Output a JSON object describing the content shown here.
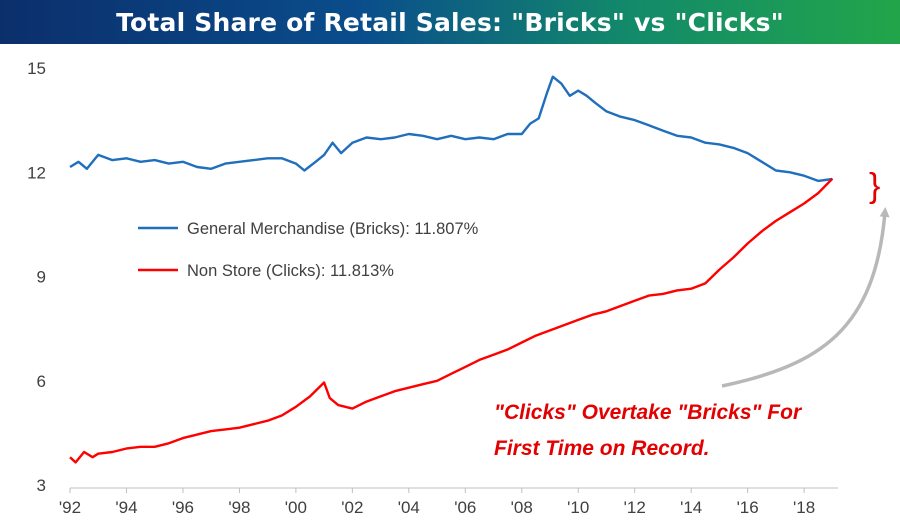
{
  "chart_data": {
    "type": "line",
    "title": "Total Share of Retail Sales: \"Bricks\" vs \"Clicks\"",
    "xlabel": "",
    "ylabel": "",
    "xlim": [
      1992,
      2019.2
    ],
    "ylim": [
      3,
      15
    ],
    "y_ticks": [
      "3",
      "6",
      "9",
      "12",
      "15"
    ],
    "x_ticks": [
      "'92",
      "'94",
      "'96",
      "'98",
      "'00",
      "'02",
      "'04",
      "'06",
      "'08",
      "'10",
      "'12",
      "'14",
      "'16",
      "'18"
    ],
    "grid": false,
    "series": [
      {
        "name": "General Merchandise (Bricks): 11.807%",
        "color": "#1f6fbd",
        "points": [
          [
            1992.0,
            12.15
          ],
          [
            1992.3,
            12.3
          ],
          [
            1992.6,
            12.1
          ],
          [
            1993.0,
            12.5
          ],
          [
            1993.5,
            12.35
          ],
          [
            1994.0,
            12.4
          ],
          [
            1994.5,
            12.3
          ],
          [
            1995.0,
            12.35
          ],
          [
            1995.5,
            12.25
          ],
          [
            1996.0,
            12.3
          ],
          [
            1996.5,
            12.15
          ],
          [
            1997.0,
            12.1
          ],
          [
            1997.5,
            12.25
          ],
          [
            1998.0,
            12.3
          ],
          [
            1998.5,
            12.35
          ],
          [
            1999.0,
            12.4
          ],
          [
            1999.5,
            12.4
          ],
          [
            2000.0,
            12.25
          ],
          [
            2000.3,
            12.05
          ],
          [
            2000.7,
            12.3
          ],
          [
            2001.0,
            12.5
          ],
          [
            2001.3,
            12.85
          ],
          [
            2001.6,
            12.55
          ],
          [
            2002.0,
            12.85
          ],
          [
            2002.5,
            13.0
          ],
          [
            2003.0,
            12.95
          ],
          [
            2003.5,
            13.0
          ],
          [
            2004.0,
            13.1
          ],
          [
            2004.5,
            13.05
          ],
          [
            2005.0,
            12.95
          ],
          [
            2005.5,
            13.05
          ],
          [
            2006.0,
            12.95
          ],
          [
            2006.5,
            13.0
          ],
          [
            2007.0,
            12.95
          ],
          [
            2007.5,
            13.1
          ],
          [
            2008.0,
            13.1
          ],
          [
            2008.3,
            13.4
          ],
          [
            2008.6,
            13.55
          ],
          [
            2008.9,
            14.3
          ],
          [
            2009.1,
            14.75
          ],
          [
            2009.4,
            14.55
          ],
          [
            2009.7,
            14.2
          ],
          [
            2010.0,
            14.35
          ],
          [
            2010.3,
            14.2
          ],
          [
            2010.6,
            14.0
          ],
          [
            2011.0,
            13.75
          ],
          [
            2011.5,
            13.6
          ],
          [
            2012.0,
            13.5
          ],
          [
            2012.5,
            13.35
          ],
          [
            2013.0,
            13.2
          ],
          [
            2013.5,
            13.05
          ],
          [
            2014.0,
            13.0
          ],
          [
            2014.5,
            12.85
          ],
          [
            2015.0,
            12.8
          ],
          [
            2015.5,
            12.7
          ],
          [
            2016.0,
            12.55
          ],
          [
            2016.5,
            12.3
          ],
          [
            2017.0,
            12.05
          ],
          [
            2017.5,
            12.0
          ],
          [
            2018.0,
            11.9
          ],
          [
            2018.5,
            11.75
          ],
          [
            2019.0,
            11.807
          ]
        ]
      },
      {
        "name": "Non Store (Clicks): 11.813%",
        "color": "#ff0000",
        "points": [
          [
            1992.0,
            3.8
          ],
          [
            1992.2,
            3.65
          ],
          [
            1992.5,
            3.95
          ],
          [
            1992.8,
            3.8
          ],
          [
            1993.0,
            3.9
          ],
          [
            1993.5,
            3.95
          ],
          [
            1994.0,
            4.05
          ],
          [
            1994.5,
            4.1
          ],
          [
            1995.0,
            4.1
          ],
          [
            1995.5,
            4.2
          ],
          [
            1996.0,
            4.35
          ],
          [
            1996.5,
            4.45
          ],
          [
            1997.0,
            4.55
          ],
          [
            1997.5,
            4.6
          ],
          [
            1998.0,
            4.65
          ],
          [
            1998.5,
            4.75
          ],
          [
            1999.0,
            4.85
          ],
          [
            1999.5,
            5.0
          ],
          [
            2000.0,
            5.25
          ],
          [
            2000.5,
            5.55
          ],
          [
            2001.0,
            5.95
          ],
          [
            2001.2,
            5.5
          ],
          [
            2001.5,
            5.3
          ],
          [
            2002.0,
            5.2
          ],
          [
            2002.5,
            5.4
          ],
          [
            2003.0,
            5.55
          ],
          [
            2003.5,
            5.7
          ],
          [
            2004.0,
            5.8
          ],
          [
            2004.5,
            5.9
          ],
          [
            2005.0,
            6.0
          ],
          [
            2005.5,
            6.2
          ],
          [
            2006.0,
            6.4
          ],
          [
            2006.5,
            6.6
          ],
          [
            2007.0,
            6.75
          ],
          [
            2007.5,
            6.9
          ],
          [
            2008.0,
            7.1
          ],
          [
            2008.5,
            7.3
          ],
          [
            2009.0,
            7.45
          ],
          [
            2009.5,
            7.6
          ],
          [
            2010.0,
            7.75
          ],
          [
            2010.5,
            7.9
          ],
          [
            2011.0,
            8.0
          ],
          [
            2011.5,
            8.15
          ],
          [
            2012.0,
            8.3
          ],
          [
            2012.5,
            8.45
          ],
          [
            2013.0,
            8.5
          ],
          [
            2013.5,
            8.6
          ],
          [
            2014.0,
            8.65
          ],
          [
            2014.5,
            8.8
          ],
          [
            2015.0,
            9.2
          ],
          [
            2015.5,
            9.55
          ],
          [
            2016.0,
            9.95
          ],
          [
            2016.5,
            10.3
          ],
          [
            2017.0,
            10.6
          ],
          [
            2017.5,
            10.85
          ],
          [
            2018.0,
            11.1
          ],
          [
            2018.5,
            11.4
          ],
          [
            2019.0,
            11.813
          ]
        ]
      }
    ],
    "legend": [
      {
        "label": "General Merchandise (Bricks): 11.807%",
        "color": "#1f6fbd"
      },
      {
        "label": "Non Store (Clicks): 11.813%",
        "color": "#ff0000"
      }
    ],
    "annotation": {
      "lines": [
        "\"Clicks\" Overtake \"Bricks\" For",
        "First Time on Record."
      ],
      "color": "#e30000"
    },
    "gap_bracket": "}"
  }
}
